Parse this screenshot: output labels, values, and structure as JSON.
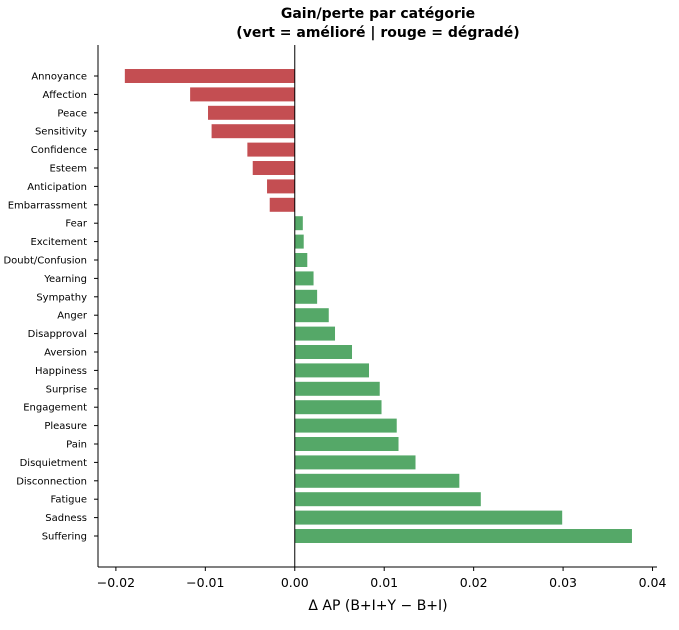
{
  "chart_data": {
    "type": "bar",
    "orientation": "horizontal",
    "title": "Gain/perte par catégorie",
    "subtitle": "(vert = amélioré | rouge = dégradé)",
    "xlabel": "Δ AP (B+I+Y − B+I)",
    "ylabel": "",
    "xlim": [
      -0.022,
      0.0405
    ],
    "xticks": [
      -0.02,
      -0.01,
      0.0,
      0.01,
      0.02,
      0.03,
      0.04
    ],
    "xtick_labels": [
      "−0.02",
      "−0.01",
      "0.00",
      "0.01",
      "0.02",
      "0.03",
      "0.04"
    ],
    "categories": [
      "Annoyance",
      "Affection",
      "Peace",
      "Sensitivity",
      "Confidence",
      "Esteem",
      "Anticipation",
      "Embarrassment",
      "Fear",
      "Excitement",
      "Doubt/Confusion",
      "Yearning",
      "Sympathy",
      "Anger",
      "Disapproval",
      "Aversion",
      "Happiness",
      "Surprise",
      "Engagement",
      "Pleasure",
      "Pain",
      "Disquietment",
      "Disconnection",
      "Fatigue",
      "Sadness",
      "Suffering"
    ],
    "values": [
      -0.019,
      -0.0117,
      -0.0097,
      -0.0093,
      -0.0053,
      -0.0047,
      -0.0031,
      -0.0028,
      0.0009,
      0.001,
      0.0014,
      0.0021,
      0.0025,
      0.0038,
      0.0045,
      0.0064,
      0.0083,
      0.0095,
      0.0097,
      0.0114,
      0.0116,
      0.0135,
      0.0184,
      0.0208,
      0.0299,
      0.0377
    ],
    "colors": {
      "positive": "#55a868",
      "negative": "#c44e52"
    },
    "grid": false,
    "zero_line": true
  }
}
